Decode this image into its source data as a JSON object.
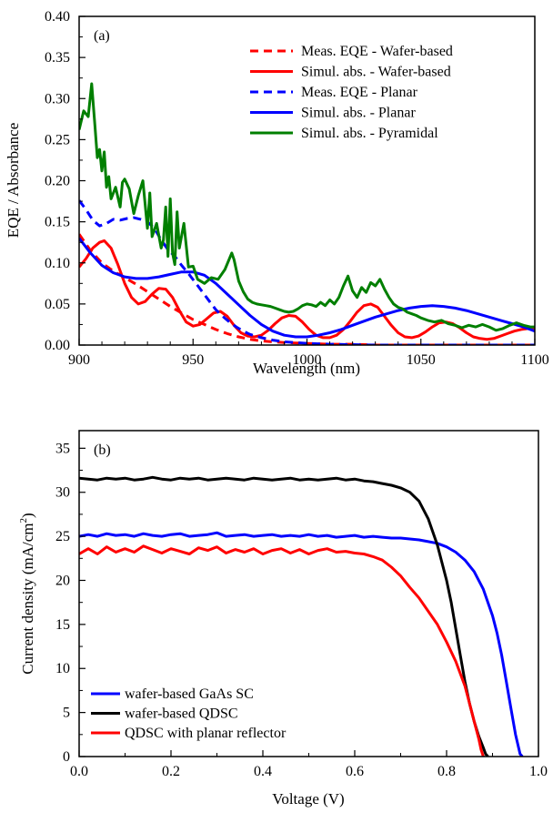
{
  "chart_data": [
    {
      "type": "line",
      "panel_label": "(a)",
      "xlabel": "Wavelength (nm)",
      "ylabel": "EQE / Absorbance",
      "xlim": [
        900,
        1100
      ],
      "ylim": [
        0,
        0.4
      ],
      "xticks": [
        "900",
        "950",
        "1000",
        "1050",
        "1100"
      ],
      "yticks": [
        "0.00",
        "0.05",
        "0.10",
        "0.15",
        "0.20",
        "0.25",
        "0.30",
        "0.35",
        "0.40"
      ],
      "legend_position": "top-right",
      "series": [
        {
          "name": "Meas. EQE - Wafer-based",
          "color": "#ff0000",
          "style": "dashed",
          "x": [
            900,
            905,
            910,
            915,
            920,
            925,
            930,
            935,
            940,
            945,
            950,
            955,
            960,
            965,
            970,
            975,
            980,
            985,
            990,
            1000,
            1010,
            1020,
            1030,
            1050,
            1100
          ],
          "y": [
            0.135,
            0.115,
            0.1,
            0.09,
            0.082,
            0.074,
            0.065,
            0.056,
            0.047,
            0.039,
            0.031,
            0.025,
            0.019,
            0.014,
            0.01,
            0.007,
            0.005,
            0.004,
            0.003,
            0.002,
            0.001,
            0.001,
            0.0,
            0.0,
            0.0
          ]
        },
        {
          "name": "Simul. abs. - Wafer-based",
          "color": "#ff0000",
          "style": "solid",
          "x": [
            900,
            903,
            906,
            909,
            911,
            914,
            917,
            920,
            923,
            926,
            929,
            932,
            935,
            938,
            941,
            944,
            947,
            950,
            953,
            956,
            959,
            962,
            965,
            968,
            971,
            974,
            977,
            980,
            983,
            986,
            989,
            992,
            995,
            998,
            1001,
            1004,
            1007,
            1010,
            1013,
            1016,
            1019,
            1022,
            1025,
            1028,
            1031,
            1034,
            1037,
            1040,
            1043,
            1046,
            1049,
            1052,
            1055,
            1058,
            1061,
            1064,
            1067,
            1070,
            1073,
            1076,
            1079,
            1082,
            1085,
            1088,
            1091,
            1094,
            1097,
            1100
          ],
          "y": [
            0.095,
            0.105,
            0.118,
            0.125,
            0.127,
            0.118,
            0.098,
            0.075,
            0.058,
            0.05,
            0.053,
            0.062,
            0.069,
            0.068,
            0.058,
            0.042,
            0.028,
            0.023,
            0.025,
            0.032,
            0.039,
            0.041,
            0.035,
            0.024,
            0.015,
            0.011,
            0.01,
            0.012,
            0.018,
            0.026,
            0.033,
            0.036,
            0.035,
            0.028,
            0.019,
            0.012,
            0.009,
            0.009,
            0.012,
            0.019,
            0.029,
            0.04,
            0.048,
            0.05,
            0.046,
            0.035,
            0.024,
            0.015,
            0.01,
            0.009,
            0.011,
            0.016,
            0.022,
            0.027,
            0.028,
            0.026,
            0.021,
            0.015,
            0.01,
            0.008,
            0.007,
            0.008,
            0.011,
            0.014,
            0.017,
            0.019,
            0.02,
            0.02
          ]
        },
        {
          "name": "Meas. EQE - Planar",
          "color": "#0000ff",
          "style": "dashed",
          "x": [
            900,
            903,
            906,
            909,
            912,
            915,
            918,
            921,
            924,
            927,
            930,
            933,
            936,
            939,
            942,
            945,
            948,
            951,
            954,
            957,
            960,
            963,
            966,
            969,
            972,
            975,
            980,
            985,
            990,
            1000,
            1010,
            1030,
            1060,
            1100
          ],
          "y": [
            0.176,
            0.165,
            0.152,
            0.145,
            0.148,
            0.153,
            0.152,
            0.154,
            0.155,
            0.153,
            0.15,
            0.142,
            0.128,
            0.116,
            0.108,
            0.097,
            0.087,
            0.076,
            0.065,
            0.054,
            0.043,
            0.035,
            0.028,
            0.022,
            0.017,
            0.013,
            0.009,
            0.006,
            0.004,
            0.002,
            0.001,
            0.0,
            0.0,
            0.0
          ]
        },
        {
          "name": "Simul. abs. - Planar",
          "color": "#0000ff",
          "style": "solid",
          "x": [
            900,
            905,
            910,
            915,
            920,
            925,
            930,
            935,
            940,
            945,
            950,
            955,
            960,
            965,
            970,
            975,
            980,
            985,
            990,
            995,
            1000,
            1005,
            1010,
            1015,
            1020,
            1025,
            1030,
            1035,
            1040,
            1045,
            1050,
            1055,
            1060,
            1065,
            1070,
            1075,
            1080,
            1085,
            1090,
            1095,
            1100
          ],
          "y": [
            0.13,
            0.112,
            0.097,
            0.088,
            0.083,
            0.081,
            0.081,
            0.083,
            0.086,
            0.089,
            0.089,
            0.085,
            0.075,
            0.062,
            0.049,
            0.036,
            0.025,
            0.017,
            0.012,
            0.01,
            0.01,
            0.012,
            0.015,
            0.019,
            0.024,
            0.029,
            0.034,
            0.038,
            0.042,
            0.045,
            0.047,
            0.048,
            0.047,
            0.045,
            0.042,
            0.038,
            0.034,
            0.03,
            0.026,
            0.022,
            0.017
          ]
        },
        {
          "name": "Simul. abs. - Pyramidal",
          "color": "#007f00",
          "style": "solid",
          "x": [
            900,
            902,
            904,
            905.5,
            907,
            908,
            909,
            910,
            911,
            912,
            913,
            914,
            916,
            918,
            919,
            920,
            922,
            924,
            926,
            928,
            930,
            931,
            932,
            934,
            936,
            937,
            938,
            939,
            940,
            941,
            942,
            943,
            944,
            946,
            948,
            950,
            952,
            955,
            958,
            961,
            964,
            967,
            968,
            970,
            972,
            974,
            976,
            978,
            980,
            982,
            984,
            986,
            988,
            990,
            992,
            994,
            996,
            998,
            1000,
            1002,
            1004,
            1006,
            1008,
            1010,
            1012,
            1014,
            1016,
            1018,
            1020,
            1022,
            1024,
            1026,
            1028,
            1030,
            1032,
            1034,
            1036,
            1038,
            1040,
            1042,
            1044,
            1046,
            1048,
            1050,
            1053,
            1056,
            1059,
            1062,
            1065,
            1068,
            1071,
            1074,
            1077,
            1080,
            1083,
            1086,
            1089,
            1092,
            1095,
            1098,
            1100
          ],
          "y": [
            0.262,
            0.285,
            0.278,
            0.318,
            0.265,
            0.228,
            0.238,
            0.212,
            0.235,
            0.192,
            0.205,
            0.178,
            0.192,
            0.168,
            0.198,
            0.202,
            0.19,
            0.16,
            0.182,
            0.2,
            0.142,
            0.185,
            0.132,
            0.148,
            0.118,
            0.128,
            0.168,
            0.108,
            0.178,
            0.112,
            0.098,
            0.162,
            0.118,
            0.148,
            0.095,
            0.096,
            0.08,
            0.075,
            0.082,
            0.08,
            0.092,
            0.112,
            0.104,
            0.078,
            0.065,
            0.056,
            0.052,
            0.05,
            0.049,
            0.048,
            0.047,
            0.045,
            0.043,
            0.041,
            0.04,
            0.041,
            0.044,
            0.048,
            0.05,
            0.049,
            0.047,
            0.052,
            0.048,
            0.055,
            0.05,
            0.058,
            0.072,
            0.084,
            0.066,
            0.058,
            0.07,
            0.064,
            0.076,
            0.072,
            0.08,
            0.068,
            0.058,
            0.05,
            0.046,
            0.044,
            0.04,
            0.038,
            0.036,
            0.033,
            0.03,
            0.028,
            0.03,
            0.026,
            0.024,
            0.021,
            0.024,
            0.022,
            0.025,
            0.022,
            0.018,
            0.02,
            0.024,
            0.027,
            0.024,
            0.022,
            0.022
          ]
        }
      ]
    },
    {
      "type": "line",
      "panel_label": "(b)",
      "xlabel": "Voltage (V)",
      "ylabel": "Current density (mA/cm",
      "ylabel_sup": "2",
      "ylabel_end": ")",
      "xlim": [
        0,
        1.0
      ],
      "ylim": [
        0,
        37
      ],
      "xticks": [
        "0.0",
        "0.2",
        "0.4",
        "0.6",
        "0.8",
        "1.0"
      ],
      "yticks": [
        "0",
        "5",
        "10",
        "15",
        "20",
        "25",
        "30",
        "35"
      ],
      "legend_position": "bottom-left",
      "series": [
        {
          "name": "wafer-based GaAs SC",
          "color": "#0000ff",
          "style": "solid",
          "x": [
            0.0,
            0.02,
            0.04,
            0.06,
            0.08,
            0.1,
            0.12,
            0.14,
            0.16,
            0.18,
            0.2,
            0.22,
            0.24,
            0.26,
            0.28,
            0.3,
            0.32,
            0.34,
            0.36,
            0.38,
            0.4,
            0.42,
            0.44,
            0.46,
            0.48,
            0.5,
            0.52,
            0.54,
            0.56,
            0.58,
            0.6,
            0.62,
            0.64,
            0.66,
            0.68,
            0.7,
            0.72,
            0.74,
            0.76,
            0.78,
            0.8,
            0.82,
            0.84,
            0.86,
            0.88,
            0.9,
            0.91,
            0.92,
            0.93,
            0.94,
            0.95,
            0.96,
            0.965
          ],
          "y": [
            25.0,
            25.2,
            25.0,
            25.3,
            25.1,
            25.2,
            25.0,
            25.3,
            25.1,
            25.0,
            25.2,
            25.3,
            25.0,
            25.1,
            25.2,
            25.4,
            25.0,
            25.1,
            25.2,
            25.0,
            25.1,
            25.2,
            25.0,
            25.1,
            25.0,
            25.2,
            25.0,
            25.1,
            24.9,
            25.0,
            25.1,
            24.9,
            25.0,
            24.9,
            24.8,
            24.8,
            24.7,
            24.6,
            24.4,
            24.2,
            23.8,
            23.2,
            22.3,
            21.0,
            19.0,
            16.0,
            14.0,
            11.5,
            8.5,
            5.5,
            2.5,
            0.3,
            0.0
          ]
        },
        {
          "name": "wafer-based QDSC",
          "color": "#000000",
          "style": "solid",
          "x": [
            0.0,
            0.02,
            0.04,
            0.06,
            0.08,
            0.1,
            0.12,
            0.14,
            0.16,
            0.18,
            0.2,
            0.22,
            0.24,
            0.26,
            0.28,
            0.3,
            0.32,
            0.34,
            0.36,
            0.38,
            0.4,
            0.42,
            0.44,
            0.46,
            0.48,
            0.5,
            0.52,
            0.54,
            0.56,
            0.58,
            0.6,
            0.62,
            0.64,
            0.66,
            0.68,
            0.7,
            0.72,
            0.74,
            0.76,
            0.78,
            0.8,
            0.81,
            0.82,
            0.83,
            0.84,
            0.85,
            0.86,
            0.87,
            0.88,
            0.885,
            0.89
          ],
          "y": [
            31.6,
            31.5,
            31.4,
            31.6,
            31.5,
            31.6,
            31.4,
            31.5,
            31.7,
            31.5,
            31.4,
            31.6,
            31.5,
            31.6,
            31.4,
            31.5,
            31.6,
            31.5,
            31.4,
            31.6,
            31.5,
            31.4,
            31.5,
            31.6,
            31.4,
            31.5,
            31.4,
            31.5,
            31.6,
            31.4,
            31.5,
            31.3,
            31.2,
            31.0,
            30.8,
            30.5,
            30.0,
            29.0,
            27.0,
            24.0,
            20.0,
            17.5,
            14.5,
            11.5,
            8.5,
            6.0,
            4.0,
            2.3,
            1.0,
            0.3,
            0.0
          ]
        },
        {
          "name": "QDSC with planar reflector",
          "color": "#ff0000",
          "style": "solid",
          "x": [
            0.0,
            0.02,
            0.04,
            0.06,
            0.08,
            0.1,
            0.12,
            0.14,
            0.16,
            0.18,
            0.2,
            0.22,
            0.24,
            0.26,
            0.28,
            0.3,
            0.32,
            0.34,
            0.36,
            0.38,
            0.4,
            0.42,
            0.44,
            0.46,
            0.48,
            0.5,
            0.52,
            0.54,
            0.56,
            0.58,
            0.6,
            0.62,
            0.64,
            0.66,
            0.68,
            0.7,
            0.72,
            0.74,
            0.76,
            0.78,
            0.8,
            0.82,
            0.84,
            0.85,
            0.86,
            0.87,
            0.875,
            0.88
          ],
          "y": [
            23.0,
            23.6,
            23.0,
            23.8,
            23.2,
            23.6,
            23.2,
            23.9,
            23.5,
            23.1,
            23.6,
            23.3,
            23.0,
            23.7,
            23.4,
            23.8,
            23.1,
            23.5,
            23.2,
            23.6,
            23.0,
            23.4,
            23.6,
            23.1,
            23.5,
            23.0,
            23.4,
            23.6,
            23.2,
            23.3,
            23.1,
            23.0,
            22.7,
            22.3,
            21.5,
            20.5,
            19.2,
            18.0,
            16.5,
            15.0,
            13.0,
            10.8,
            8.0,
            6.0,
            4.0,
            2.0,
            0.8,
            0.0
          ]
        }
      ]
    }
  ]
}
